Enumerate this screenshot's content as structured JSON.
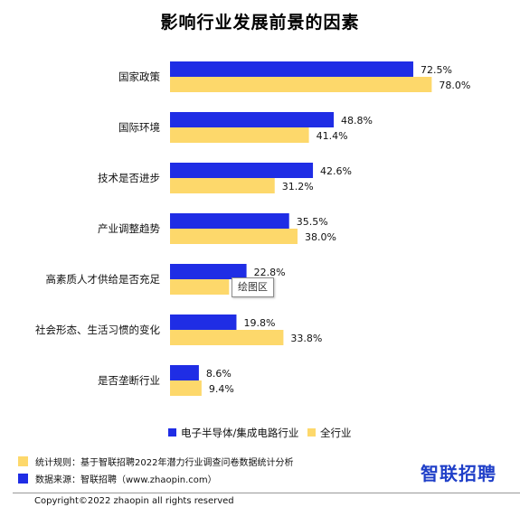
{
  "chart_data": {
    "type": "bar",
    "orientation": "horizontal",
    "title": "影响行业发展前景的因素",
    "categories": [
      "国家政策",
      "国际环境",
      "技术是否进步",
      "产业调整趋势",
      "高素质人才供给是否充足",
      "社会形态、生活习惯的变化",
      "是否垄断行业"
    ],
    "series": [
      {
        "name": "电子半导体/集成电路行业",
        "color": "#1f2de5",
        "values": [
          72.5,
          48.8,
          42.6,
          35.5,
          22.8,
          19.8,
          8.6
        ]
      },
      {
        "name": "全行业",
        "color": "#fdd86b",
        "values": [
          78.0,
          41.4,
          31.2,
          38.0,
          17.6,
          33.8,
          9.4
        ]
      }
    ],
    "value_labels": [
      [
        "72.5%",
        "48.8%",
        "42.6%",
        "35.5%",
        "22.8%",
        "19.8%",
        "8.6%"
      ],
      [
        "78.0%",
        "41.4%",
        "31.2%",
        "38.0%",
        "",
        "33.8%",
        "9.4%"
      ]
    ],
    "xlim": [
      0,
      100
    ],
    "grid": false,
    "legend_position": "bottom-right"
  },
  "tooltip": {
    "text": "绘图区"
  },
  "footnotes": [
    {
      "text": "统计规则：基于智联招聘2022年潜力行业调查问卷数据统计分析",
      "color": "#fdd86b"
    },
    {
      "text": "数据来源：智联招聘（www.zhaopin.com）",
      "color": "#1f2de5"
    }
  ],
  "brand": {
    "logo_text": "智联招聘",
    "color": "#1f3fc8"
  },
  "copyright": "Copyright©2022 zhaopin all rights reserved"
}
